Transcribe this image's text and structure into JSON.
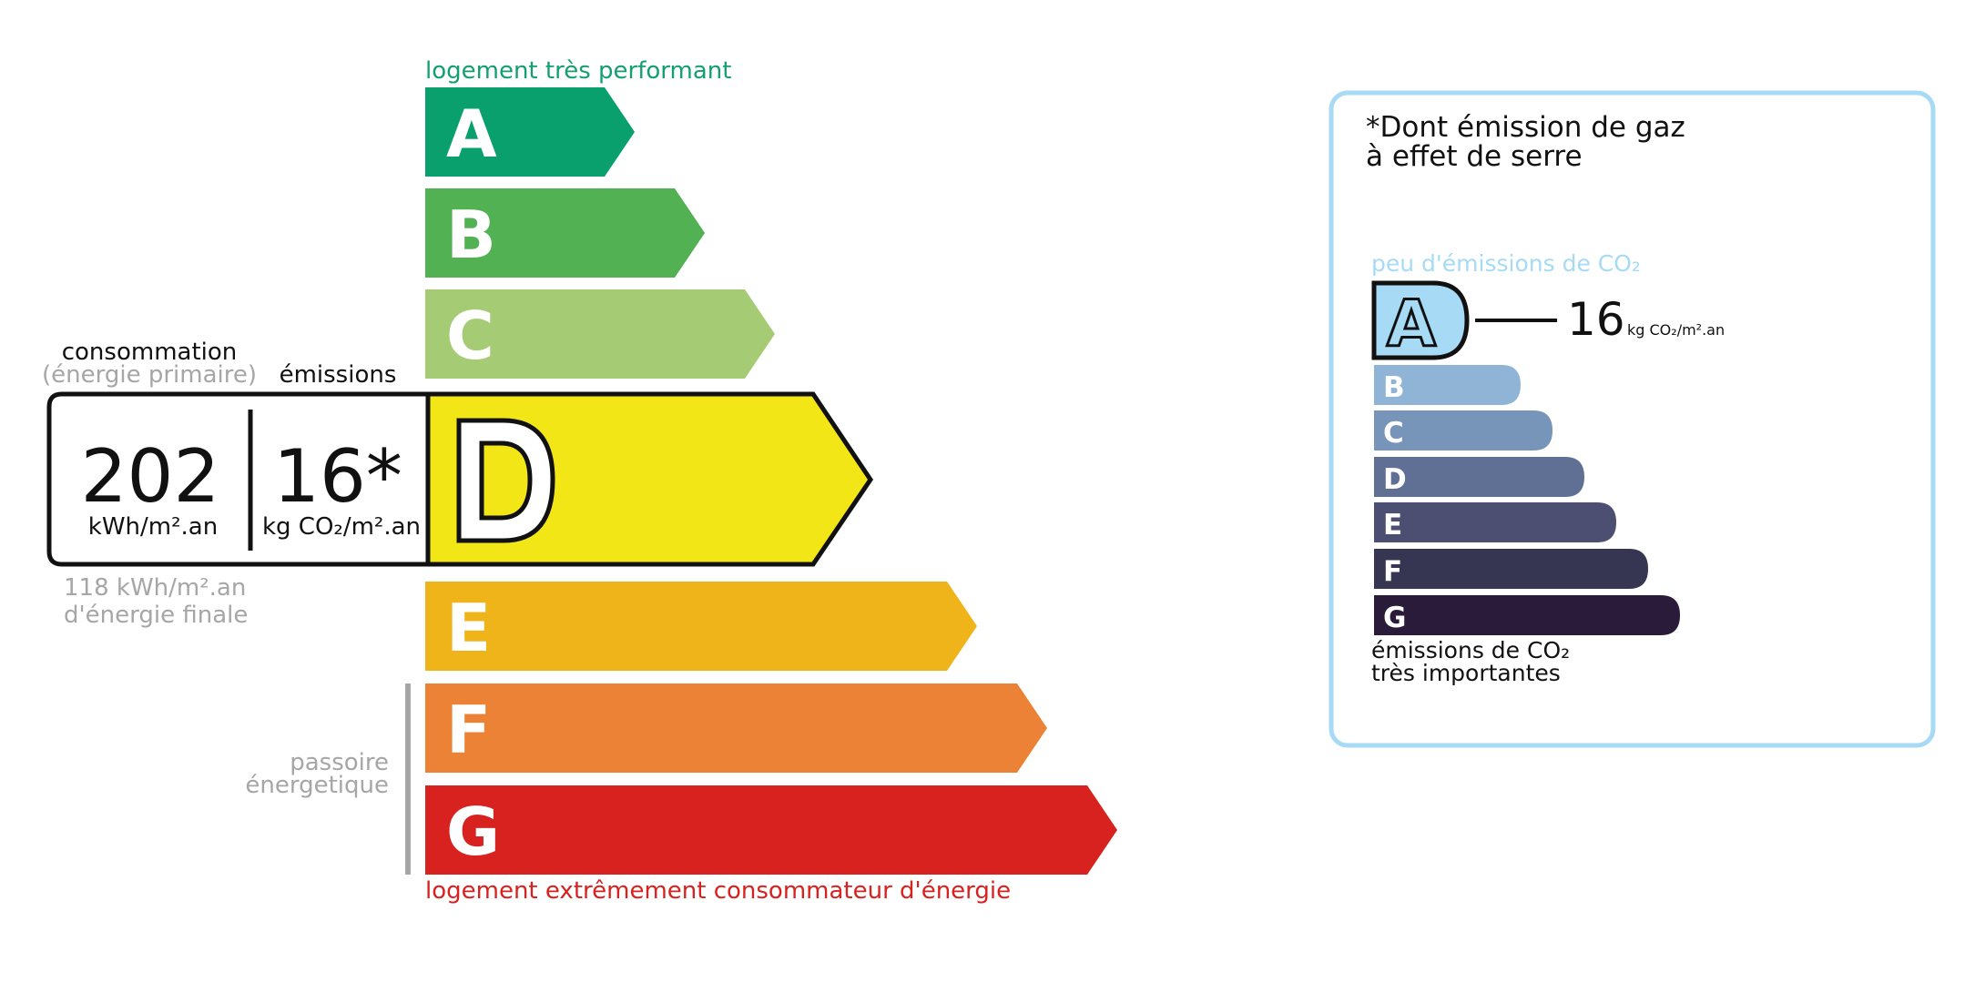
{
  "energy": {
    "top_label": "logement très performant",
    "bottom_label": "logement extrêmement consommateur d'énergie",
    "classes": [
      {
        "letter": "A",
        "color": "#0aa06e"
      },
      {
        "letter": "B",
        "color": "#52b153"
      },
      {
        "letter": "C",
        "color": "#a5cc74"
      },
      {
        "letter": "D",
        "color": "#f2e617"
      },
      {
        "letter": "E",
        "color": "#efb41a"
      },
      {
        "letter": "F",
        "color": "#eb8235"
      },
      {
        "letter": "G",
        "color": "#d7221f"
      }
    ],
    "active_class": "D",
    "consumption_header": "consommation",
    "consumption_subheader": "(énergie primaire)",
    "emissions_header": "émissions",
    "consumption_value": "202",
    "consumption_unit": "kWh/m².an",
    "emissions_value": "16*",
    "emissions_unit": "kg CO₂/m².an",
    "final_energy_line1": "118 kWh/m².an",
    "final_energy_line2": "d'énergie finale",
    "passoire_line1": "passoire",
    "passoire_line2": "énergetique"
  },
  "ges": {
    "title_line1": "*Dont émission de gaz",
    "title_line2": "à effet de serre",
    "top_label": "peu d'émissions de CO₂",
    "bottom_line1": "émissions de CO₂",
    "bottom_line2": "très importantes",
    "classes": [
      {
        "letter": "A",
        "color": "#a6daf5"
      },
      {
        "letter": "B",
        "color": "#8fb4d5"
      },
      {
        "letter": "C",
        "color": "#7795b8"
      },
      {
        "letter": "D",
        "color": "#5f7094"
      },
      {
        "letter": "E",
        "color": "#4c4f71"
      },
      {
        "letter": "F",
        "color": "#363552"
      },
      {
        "letter": "G",
        "color": "#2b1b3a"
      }
    ],
    "active_class": "A",
    "value": "16",
    "unit": "kg CO₂/m².an",
    "border_color": "#a6daf5"
  }
}
